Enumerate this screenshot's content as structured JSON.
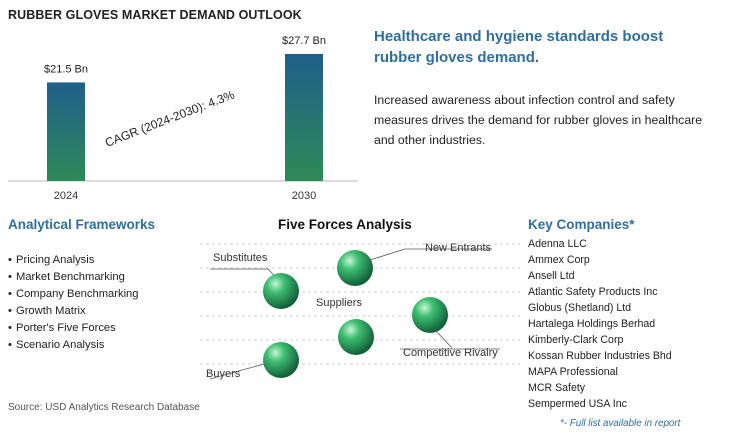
{
  "header": {
    "title": "RUBBER GLOVES MARKET DEMAND OUTLOOK"
  },
  "chart_data": {
    "type": "bar",
    "categories": [
      "2024",
      "2030"
    ],
    "values": [
      21.5,
      27.7
    ],
    "value_labels": [
      "$21.5 Bn",
      "$27.7 Bn"
    ],
    "annotation": "CAGR (2024-2030):  4.3%",
    "bar_color_top": "#1f5f8b",
    "bar_color_bottom": "#2e8a57"
  },
  "insight": {
    "headline": "Healthcare and hygiene standards boost rubber gloves demand.",
    "description": "Increased awareness about infection control and safety measures drives the demand for rubber gloves in healthcare and other industries."
  },
  "frameworks": {
    "title": "Analytical Frameworks",
    "items": [
      "Pricing Analysis",
      "Market Benchmarking",
      "Company Benchmarking",
      "Growth Matrix",
      "Porter's Five Forces",
      "Scenario Analysis"
    ]
  },
  "five_forces": {
    "title": "Five Forces Analysis",
    "labels": {
      "substitutes": "Substitutes",
      "new_entrants": "New Entrants",
      "suppliers": "Suppliers",
      "competitive_rivalry": "Competitive Rivalry",
      "buyers": "Buyers"
    },
    "sphere_color": "#2e9a5a"
  },
  "companies": {
    "title": "Key Companies*",
    "items": [
      "Adenna LLC",
      "Ammex Corp",
      "Ansell Ltd",
      "Atlantic Safety Products Inc",
      "Globus (Shetland) Ltd",
      "Hartalega Holdings Berhad",
      "Kimberly-Clark Corp",
      "Kossan Rubber Industries Bhd",
      "MAPA Professional",
      "MCR Safety",
      "Sempermed USA Inc"
    ],
    "footnote": "*- Full list available in report"
  },
  "footer": {
    "source": "Source: USD Analytics Research Database"
  }
}
